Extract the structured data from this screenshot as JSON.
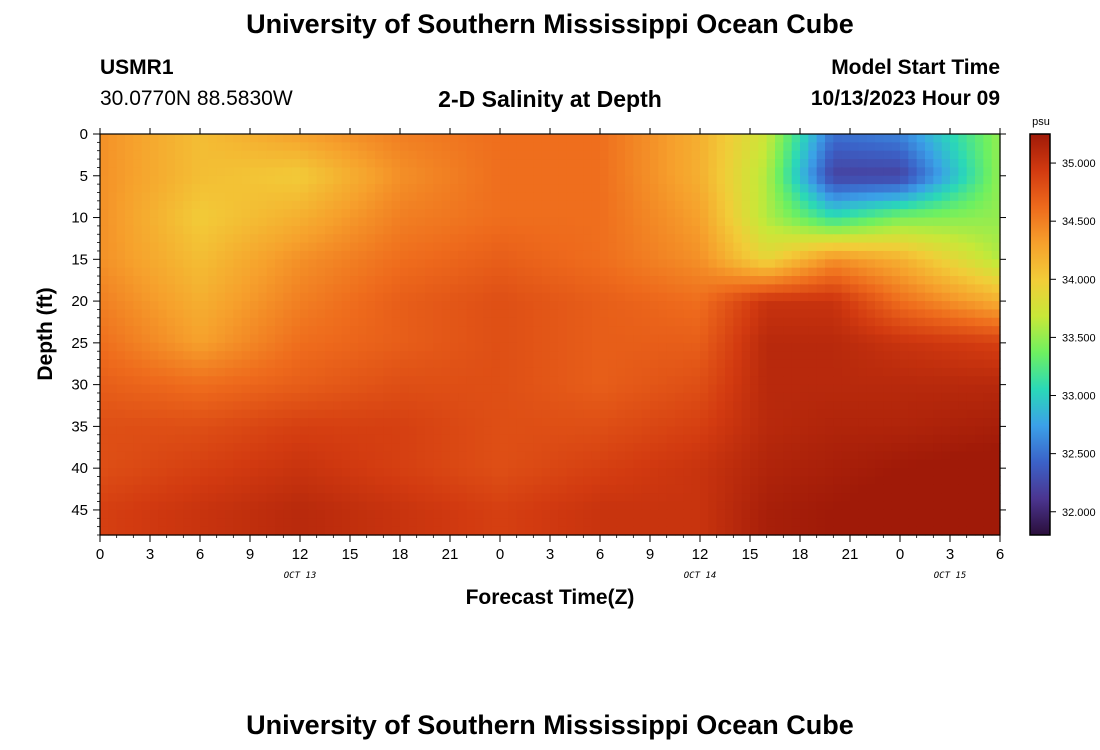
{
  "header": {
    "title": "University of Southern Mississippi Ocean Cube",
    "station": "USMR1",
    "coords": "30.0770N  88.5830W",
    "subtitle": "2-D Salinity at Depth",
    "model_label": "Model Start Time",
    "model_time": "10/13/2023 Hour 09"
  },
  "footer": {
    "title": "University of Southern Mississippi Ocean Cube"
  },
  "chart_data": {
    "type": "heatmap",
    "title": "2-D Salinity at Depth",
    "xlabel": "Forecast Time(Z)",
    "ylabel": "Depth (ft)",
    "x_ticks": [
      "0",
      "3",
      "6",
      "9",
      "12",
      "15",
      "18",
      "21",
      "0",
      "3",
      "6",
      "9",
      "12",
      "15",
      "18",
      "21",
      "0",
      "3",
      "6"
    ],
    "x_range_hours": [
      0,
      54
    ],
    "day_labels": [
      {
        "hour": 12,
        "label": "OCT 13"
      },
      {
        "hour": 36,
        "label": "OCT 14"
      },
      {
        "hour": 51,
        "label": "OCT 15"
      }
    ],
    "y_ticks": [
      0,
      5,
      10,
      15,
      20,
      25,
      30,
      35,
      40,
      45
    ],
    "y_range": [
      0,
      48
    ],
    "colorbar": {
      "unit": "psu",
      "range": [
        31.8,
        35.25
      ],
      "ticks": [
        "32.000",
        "32.500",
        "33.000",
        "33.500",
        "34.000",
        "34.500",
        "35.000"
      ],
      "colors": [
        "#2a0e3a",
        "#4b3590",
        "#3b62c8",
        "#3ba0e8",
        "#2ad8b8",
        "#6ef060",
        "#c8e838",
        "#f2cc38",
        "#f6a02c",
        "#ee6a1c",
        "#d23a10",
        "#a01a08"
      ]
    },
    "salinity_hours": [
      0,
      6,
      12,
      18,
      24,
      30,
      36,
      40,
      44,
      48,
      54
    ],
    "salinity_depths": [
      0,
      5,
      10,
      15,
      20,
      25,
      30,
      35,
      40,
      45,
      48
    ],
    "salinity": [
      [
        34.4,
        34.1,
        34.3,
        34.5,
        34.6,
        34.6,
        34.2,
        33.7,
        32.5,
        32.6,
        33.5
      ],
      [
        34.4,
        34.1,
        34.0,
        34.4,
        34.6,
        34.6,
        34.2,
        33.6,
        32.2,
        32.2,
        33.5
      ],
      [
        34.4,
        34.0,
        34.2,
        34.5,
        34.6,
        34.6,
        34.3,
        33.6,
        33.1,
        33.4,
        33.5
      ],
      [
        34.4,
        34.1,
        34.4,
        34.6,
        34.7,
        34.6,
        34.4,
        33.9,
        34.4,
        34.2,
        33.6
      ],
      [
        34.5,
        34.2,
        34.5,
        34.7,
        34.8,
        34.7,
        34.6,
        35.0,
        35.0,
        34.6,
        34.2
      ],
      [
        34.6,
        34.3,
        34.6,
        34.7,
        34.8,
        34.7,
        34.7,
        35.1,
        35.1,
        35.0,
        34.9
      ],
      [
        34.7,
        34.6,
        34.7,
        34.8,
        34.8,
        34.7,
        34.8,
        35.1,
        35.1,
        35.1,
        35.1
      ],
      [
        34.8,
        34.8,
        34.9,
        34.9,
        34.8,
        34.8,
        34.9,
        35.1,
        35.15,
        35.15,
        35.2
      ],
      [
        34.8,
        34.9,
        35.0,
        34.9,
        34.8,
        34.9,
        35.0,
        35.15,
        35.2,
        35.25,
        35.3
      ],
      [
        34.9,
        35.0,
        35.1,
        35.0,
        34.9,
        35.0,
        35.0,
        35.2,
        35.25,
        35.3,
        35.5
      ],
      [
        34.9,
        35.0,
        35.1,
        35.0,
        34.9,
        35.0,
        35.0,
        35.2,
        35.25,
        35.35,
        35.5
      ]
    ]
  }
}
